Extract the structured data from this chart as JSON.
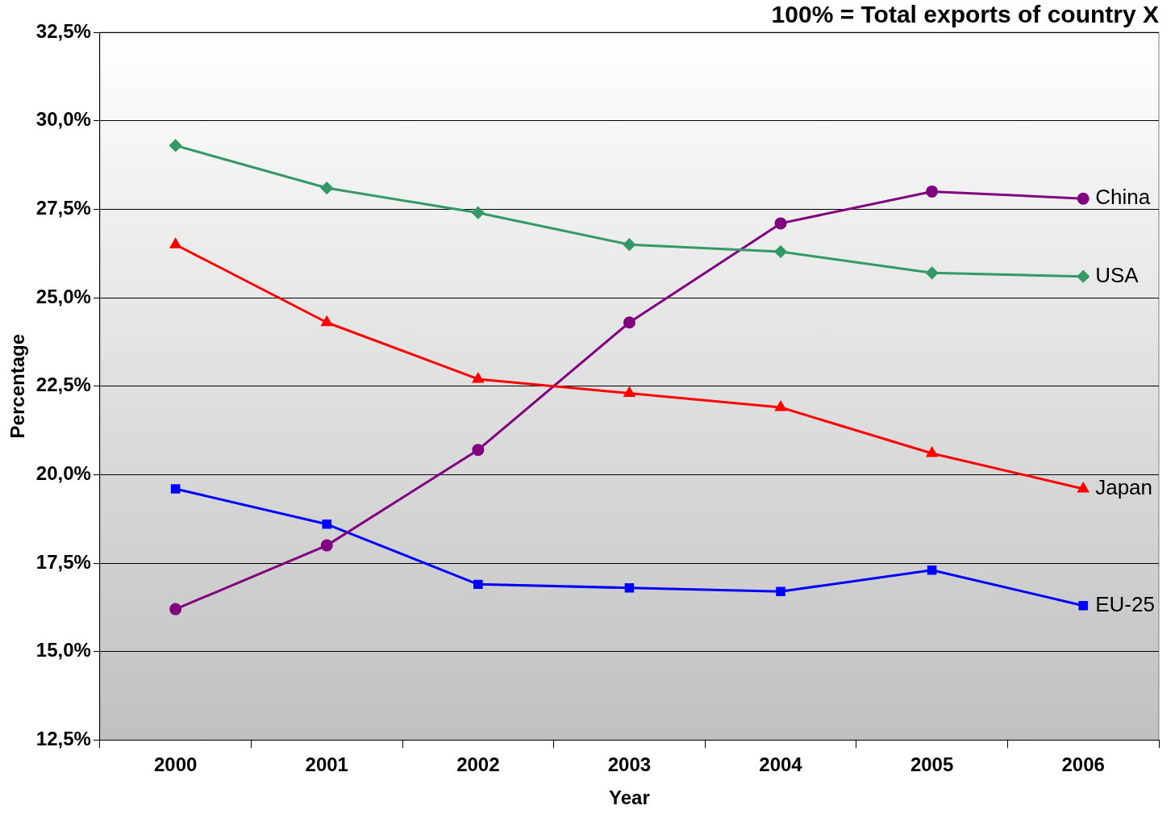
{
  "chart_data": {
    "type": "line",
    "title": "100% = Total exports of country X",
    "xlabel": "Year",
    "ylabel": "Percentage",
    "categories": [
      "2000",
      "2001",
      "2002",
      "2003",
      "2004",
      "2005",
      "2006"
    ],
    "series": [
      {
        "name": "USA",
        "color": "#339966",
        "marker": "diamond",
        "values": [
          29.3,
          28.1,
          27.4,
          26.5,
          26.3,
          25.7,
          25.6
        ]
      },
      {
        "name": "Japan",
        "color": "#ff0000",
        "marker": "triangle",
        "values": [
          26.5,
          24.3,
          22.7,
          22.3,
          21.9,
          20.6,
          19.6
        ]
      },
      {
        "name": "China",
        "color": "#800080",
        "marker": "circle",
        "values": [
          16.2,
          18.0,
          20.7,
          24.3,
          27.1,
          28.0,
          27.8
        ]
      },
      {
        "name": "EU-25",
        "color": "#0000ff",
        "marker": "square",
        "values": [
          19.6,
          18.6,
          16.9,
          16.8,
          16.7,
          17.3,
          16.3
        ]
      }
    ],
    "ylim": [
      12.5,
      32.5
    ],
    "yticks": [
      {
        "value": 12.5,
        "label": "12,5%"
      },
      {
        "value": 15,
        "label": "15,0%"
      },
      {
        "value": 17.5,
        "label": "17,5%"
      },
      {
        "value": 20,
        "label": "20,0%"
      },
      {
        "value": 22.5,
        "label": "22,5%"
      },
      {
        "value": 25,
        "label": "25,0%"
      },
      {
        "value": 27.5,
        "label": "27,5%"
      },
      {
        "value": 30,
        "label": "30,0%"
      },
      {
        "value": 32.5,
        "label": "32,5%"
      }
    ],
    "grid": "y",
    "legend": false,
    "line_style": "solid"
  }
}
